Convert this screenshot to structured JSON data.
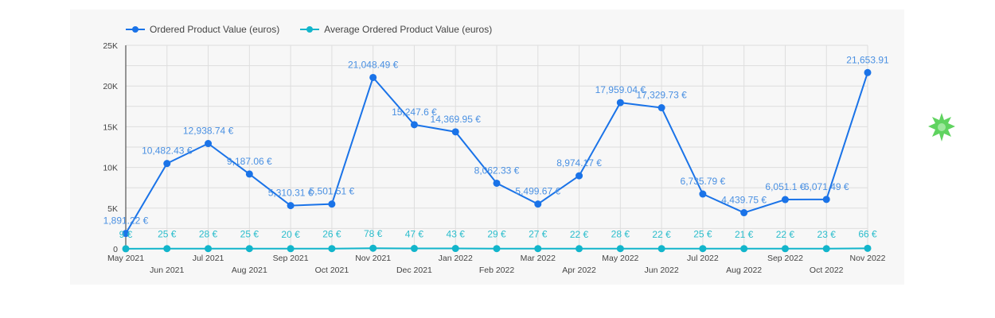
{
  "chart_data": {
    "type": "line",
    "categories": [
      "May 2021",
      "Jun 2021",
      "Jul 2021",
      "Aug 2021",
      "Sep 2021",
      "Oct 2021",
      "Nov 2021",
      "Dec 2021",
      "Jan 2022",
      "Feb 2022",
      "Mar 2022",
      "Apr 2022",
      "May 2022",
      "Jun 2022",
      "Jul 2022",
      "Aug 2022",
      "Sep 2022",
      "Oct 2022",
      "Nov 2022"
    ],
    "ylim": [
      0,
      25000
    ],
    "yticks": [
      {
        "v": 0,
        "label": "0"
      },
      {
        "v": 5000,
        "label": "5K"
      },
      {
        "v": 10000,
        "label": "10K"
      },
      {
        "v": 15000,
        "label": "15K"
      },
      {
        "v": 20000,
        "label": "20K"
      },
      {
        "v": 25000,
        "label": "25K"
      }
    ],
    "grid": true,
    "legend_position": "top-left",
    "series": [
      {
        "name": "Ordered Product Value (euros)",
        "color": "#1a73e8",
        "label_color": "#4a90e2",
        "values": [
          1891.22,
          10482.43,
          12938.74,
          9187.06,
          5310.31,
          5501.51,
          21048.49,
          15247.6,
          14369.95,
          8062.33,
          5499.67,
          8974.17,
          17959.04,
          17329.73,
          6735.79,
          4439.75,
          6051.1,
          6071.49,
          21653.91
        ],
        "labels": [
          "1,891.22 €",
          "10,482.43 €",
          "12,938.74 €",
          "9,187.06 €",
          "5,310.31 €",
          "5,501.51 €",
          "21,048.49 €",
          "15,247.6 €",
          "14,369.95 €",
          "8,062.33 €",
          "5,499.67 €",
          "8,974.17 €",
          "17,959.04 €",
          "17,329.73 €",
          "6,735.79 €",
          "4,439.75 €",
          "6,051.1 €",
          "6,071.49 €",
          "21,653.91"
        ]
      },
      {
        "name": "Average Ordered Product Value (euros)",
        "color": "#12b5cb",
        "label_color": "#2bbdcc",
        "values": [
          9,
          25,
          28,
          25,
          20,
          26,
          78,
          47,
          43,
          29,
          27,
          22,
          28,
          22,
          25,
          21,
          22,
          23,
          66
        ],
        "labels": [
          "9 €",
          "25 €",
          "28 €",
          "25 €",
          "20 €",
          "26 €",
          "78 €",
          "47 €",
          "43 €",
          "29 €",
          "27 €",
          "22 €",
          "28 €",
          "22 €",
          "25 €",
          "21 €",
          "22 €",
          "23 €",
          "66 €"
        ]
      }
    ]
  },
  "badge_icon": "green-starburst-icon"
}
